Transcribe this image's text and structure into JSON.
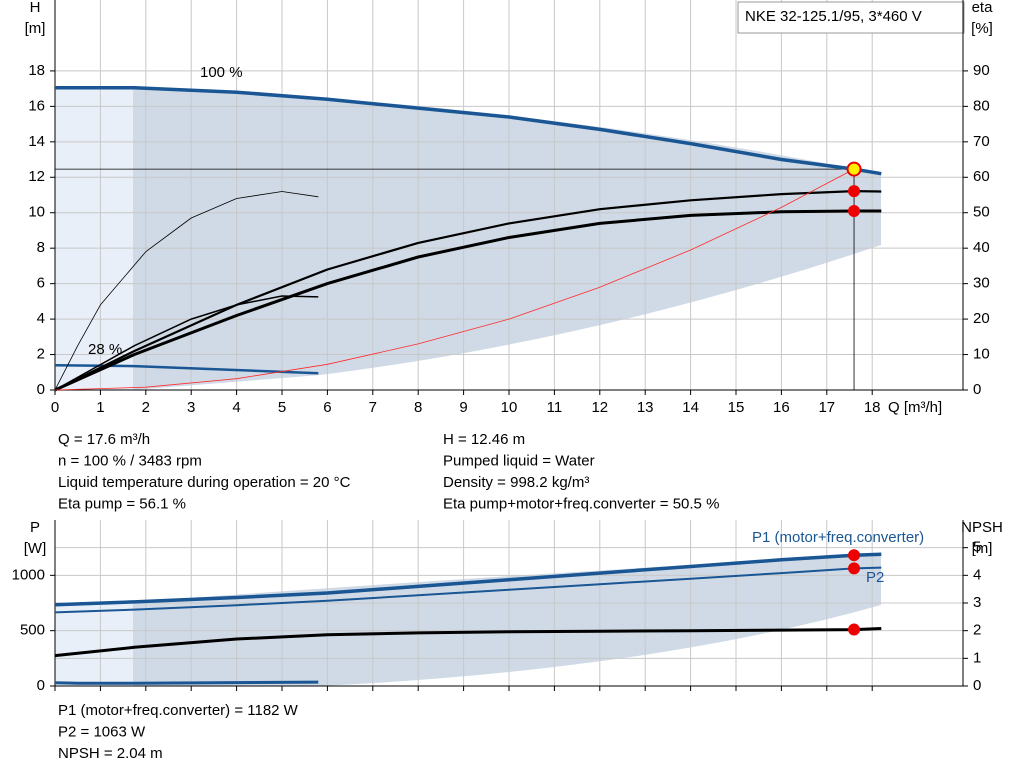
{
  "chart_data": [
    {
      "type": "line",
      "title": "NKE 32-125.1/95, 3*460 V",
      "xlabel": "Q [m³/h]",
      "ylabel": [
        "H",
        "[m]"
      ],
      "y2label": [
        "eta",
        "[%]"
      ],
      "xlim": [
        0,
        20
      ],
      "ylim": [
        0,
        22
      ],
      "y2lim": [
        0,
        110
      ],
      "xticks": [
        0,
        1,
        2,
        3,
        4,
        5,
        6,
        7,
        8,
        9,
        10,
        11,
        12,
        13,
        14,
        15,
        16,
        17,
        18
      ],
      "yticks": [
        0,
        2,
        4,
        6,
        8,
        10,
        12,
        14,
        16,
        18
      ],
      "y2ticks": [
        0,
        10,
        20,
        30,
        40,
        50,
        60,
        70,
        80,
        90
      ],
      "grid": true,
      "operating_point": {
        "x": 17.6,
        "y": 12.46
      },
      "series": [
        {
          "name": "100 %",
          "color": "#1a5694",
          "width": 3.5,
          "x": [
            0,
            1.75,
            4,
            6,
            8,
            10,
            12,
            14,
            16,
            17.6,
            18.2
          ],
          "values": [
            17.05,
            17.05,
            16.8,
            16.4,
            15.9,
            15.4,
            14.7,
            13.9,
            13.0,
            12.46,
            12.2
          ]
        },
        {
          "name": "28 %",
          "color": "#1a5694",
          "width": 2.5,
          "x": [
            0,
            1.75,
            5.8
          ],
          "values": [
            1.4,
            1.35,
            0.95
          ]
        },
        {
          "color": "#000000",
          "width": 0.8,
          "axis": "y2",
          "x": [
            0,
            0.5,
            1,
            2,
            3,
            4,
            5,
            5.8
          ],
          "values": [
            0,
            12.5,
            24,
            39,
            48.5,
            54,
            56,
            54.5
          ]
        },
        {
          "color": "#000000",
          "width": 1.5,
          "axis": "y2",
          "x": [
            0,
            1.75,
            3,
            4,
            5,
            5.8
          ],
          "values": [
            0,
            12.5,
            20,
            24,
            26.5,
            26.25
          ]
        },
        {
          "color": "#000000",
          "width": 2.2,
          "axis": "y2",
          "marker": true,
          "x": [
            0,
            1.75,
            4,
            6,
            8,
            10,
            12,
            14,
            16,
            17.6,
            18.2
          ],
          "values": [
            0,
            11,
            24,
            34,
            41.5,
            47,
            51,
            53.5,
            55.25,
            56.1,
            56
          ]
        },
        {
          "color": "#000000",
          "width": 3,
          "axis": "y2",
          "marker": true,
          "x": [
            0,
            1.75,
            4,
            6,
            8,
            10,
            12,
            14,
            16,
            17.6,
            18.2
          ],
          "values": [
            0,
            10,
            21,
            30,
            37.5,
            43,
            47,
            49.25,
            50.25,
            50.5,
            50.5
          ]
        },
        {
          "color": "#ff2a2a",
          "width": 0.8,
          "x": [
            0,
            2,
            4,
            6,
            8,
            10,
            12,
            14,
            16,
            17.6
          ],
          "values": [
            0,
            0.16,
            0.64,
            1.45,
            2.6,
            4.0,
            5.8,
            7.9,
            10.3,
            12.46
          ]
        }
      ],
      "notes": [
        "Q = 17.6 m³/h",
        "n = 100 % / 3483 rpm",
        "Liquid temperature during operation = 20 °C",
        "Eta pump = 56.1 %",
        "H = 12.46 m",
        "Pumped liquid = Water",
        "Density = 998.2 kg/m³",
        "Eta pump+motor+freq.converter = 50.5 %"
      ]
    },
    {
      "type": "line",
      "ylabel": [
        "P",
        "[W]"
      ],
      "y2label": [
        "NPSH",
        "[m]"
      ],
      "xlim": [
        0,
        20
      ],
      "ylim": [
        0,
        1500
      ],
      "y2lim": [
        0,
        6
      ],
      "yticks": [
        0,
        500,
        1000
      ],
      "y2ticks": [
        0,
        1,
        2,
        3,
        4,
        5
      ],
      "grid": true,
      "series": [
        {
          "name": "P1 (motor+freq.converter)",
          "color": "#1a5694",
          "width": 3.5,
          "marker": true,
          "x": [
            0,
            1.75,
            4,
            6,
            8,
            10,
            12,
            14,
            16,
            17.6,
            18.2
          ],
          "values": [
            735,
            760,
            800,
            840,
            900,
            960,
            1020,
            1080,
            1140,
            1182,
            1190
          ]
        },
        {
          "name": "P2",
          "color": "#1a5694",
          "width": 2,
          "marker": true,
          "x": [
            0,
            1.75,
            4,
            6,
            8,
            10,
            12,
            14,
            16,
            17.6,
            18.2
          ],
          "values": [
            665,
            690,
            730,
            770,
            820,
            870,
            920,
            970,
            1020,
            1063,
            1070
          ]
        },
        {
          "color": "#1a5694",
          "width": 3,
          "x": [
            0,
            0.5,
            1.75,
            5.8
          ],
          "values": [
            30,
            25,
            25,
            35
          ]
        },
        {
          "color": "#000000",
          "width": 3,
          "axis": "y2",
          "marker": true,
          "x": [
            0,
            1.75,
            4,
            6,
            8,
            10,
            12,
            14,
            16,
            17.6,
            18.2
          ],
          "values": [
            1.1,
            1.4,
            1.7,
            1.85,
            1.92,
            1.96,
            1.98,
            2.0,
            2.02,
            2.04,
            2.08
          ]
        }
      ],
      "notes": [
        "P1 (motor+freq.converter) = 1182 W",
        "P2 = 1063 W",
        "NPSH = 2.04 m"
      ]
    }
  ]
}
